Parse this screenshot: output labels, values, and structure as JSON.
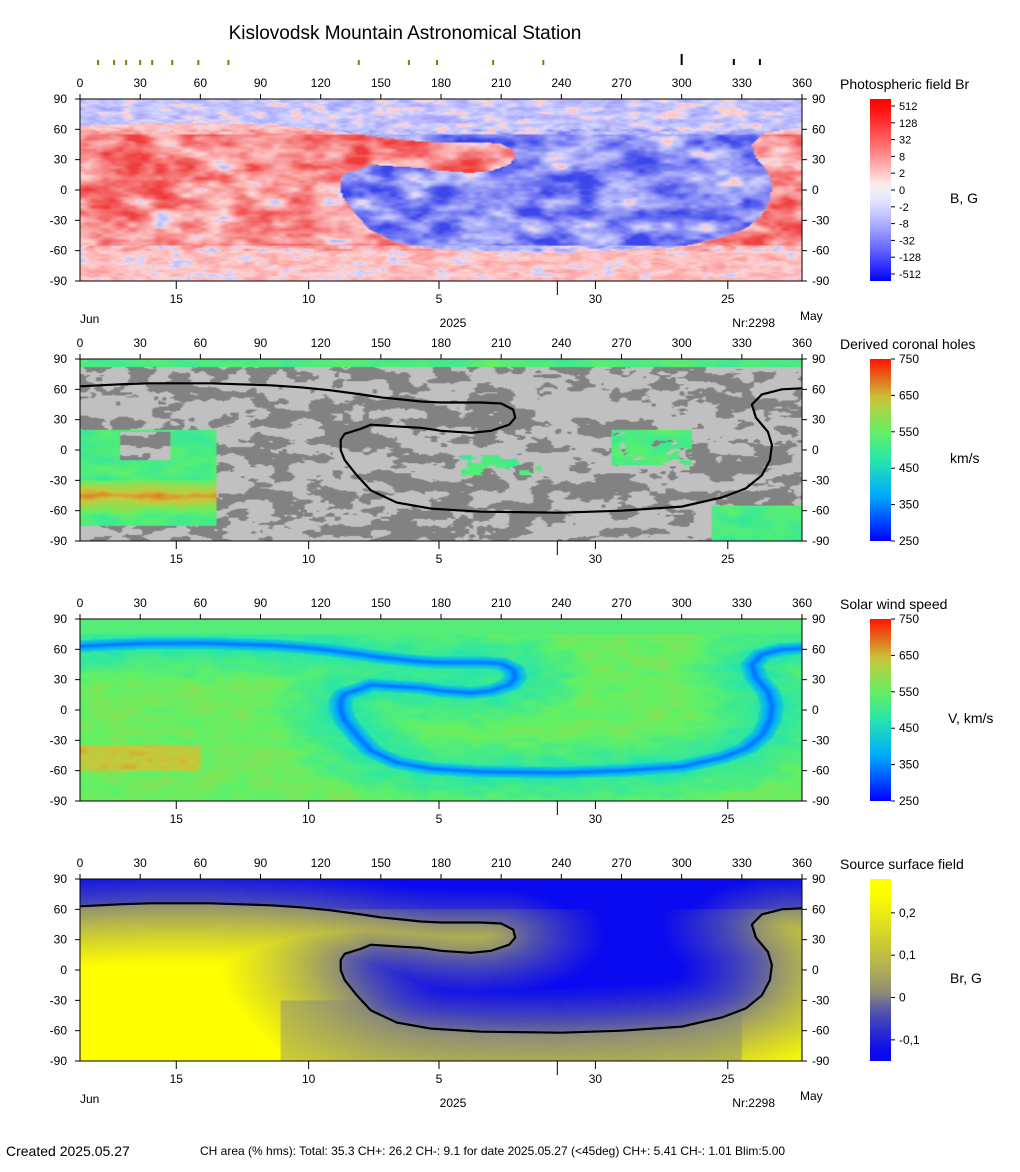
{
  "title": "Kislovodsk Mountain Astronomical Station",
  "top_markers": {
    "olive": [
      9,
      17,
      23,
      30,
      36,
      46,
      59,
      74,
      139,
      164,
      178,
      206,
      231
    ],
    "black_tall": [
      300
    ],
    "black_short": [
      326,
      339
    ]
  },
  "lon_ticks": [
    0,
    30,
    60,
    90,
    120,
    150,
    180,
    210,
    240,
    270,
    300,
    330,
    360
  ],
  "lat_ticks": [
    90,
    60,
    30,
    0,
    -30,
    -60,
    -90
  ],
  "date_ticks": [
    {
      "label": "15",
      "lon": 48
    },
    {
      "label": "10",
      "lon": 114
    },
    {
      "label": "5",
      "lon": 179
    },
    {
      "label": "",
      "lon": 238
    },
    {
      "label": "30",
      "lon": 257
    },
    {
      "label": "25",
      "lon": 323
    }
  ],
  "footer_labels": {
    "left_month": "Jun",
    "year": "2025",
    "carrington": "Nr:2298",
    "right_month": "May"
  },
  "neutral_line": [
    [
      0,
      63
    ],
    [
      10,
      64
    ],
    [
      20,
      65
    ],
    [
      35,
      66
    ],
    [
      50,
      66
    ],
    [
      65,
      66
    ],
    [
      80,
      65
    ],
    [
      95,
      64
    ],
    [
      110,
      62
    ],
    [
      125,
      59
    ],
    [
      140,
      55
    ],
    [
      150,
      52
    ],
    [
      160,
      50
    ],
    [
      170,
      48
    ],
    [
      180,
      47
    ],
    [
      190,
      47
    ],
    [
      200,
      47
    ],
    [
      210,
      46
    ],
    [
      216,
      40
    ],
    [
      217,
      32
    ],
    [
      214,
      25
    ],
    [
      205,
      19
    ],
    [
      195,
      17
    ],
    [
      180,
      19
    ],
    [
      170,
      22
    ],
    [
      160,
      23
    ],
    [
      145,
      25
    ],
    [
      140,
      21
    ],
    [
      132,
      16
    ],
    [
      130,
      10
    ],
    [
      130,
      0
    ],
    [
      132,
      -10
    ],
    [
      138,
      -25
    ],
    [
      145,
      -40
    ],
    [
      158,
      -52
    ],
    [
      175,
      -58
    ],
    [
      200,
      -61
    ],
    [
      240,
      -62
    ],
    [
      270,
      -60
    ],
    [
      300,
      -56
    ],
    [
      320,
      -47
    ],
    [
      332,
      -38
    ],
    [
      340,
      -25
    ],
    [
      344,
      -10
    ],
    [
      345,
      5
    ],
    [
      343,
      18
    ],
    [
      337,
      32
    ],
    [
      335,
      45
    ],
    [
      340,
      55
    ],
    [
      350,
      60
    ],
    [
      360,
      61
    ]
  ],
  "panels": [
    {
      "id": "br",
      "name": "Photospheric field Br",
      "unit": "B, G",
      "colorbar_labels": [
        "512",
        "128",
        "32",
        "8",
        "2",
        "0",
        "-2",
        "-8",
        "-32",
        "-128",
        "-512"
      ],
      "top_axis": true,
      "bottom_labels": true
    },
    {
      "id": "ch",
      "name": "Derived coronal holes",
      "unit": "km/s",
      "colorbar_labels": [
        "750",
        "650",
        "550",
        "450",
        "350",
        "250"
      ],
      "colorbar_range": [
        250,
        750
      ],
      "top_axis": true,
      "bottom_labels": false
    },
    {
      "id": "sw",
      "name": "Solar wind speed",
      "unit": "V, km/s",
      "colorbar_labels": [
        "750",
        "650",
        "550",
        "450",
        "350",
        "250"
      ],
      "colorbar_range": [
        250,
        750
      ],
      "top_axis": true,
      "bottom_labels": false
    },
    {
      "id": "ss",
      "name": "Source surface field",
      "unit": "Br, G",
      "colorbar_labels": [
        "0,2",
        "0,1",
        "0",
        "-0,1"
      ],
      "colorbar_range": [
        -0.15,
        0.28
      ],
      "top_axis": true,
      "bottom_labels": true
    }
  ],
  "chart_data": [
    {
      "type": "heatmap",
      "title": "Photospheric field Br",
      "unit": "B, G",
      "xlim": [
        0,
        360
      ],
      "ylim": [
        -90,
        90
      ],
      "colorbar_ticks": [
        512,
        128,
        32,
        8,
        2,
        0,
        -2,
        -8,
        -32,
        -128,
        -512
      ]
    },
    {
      "type": "heatmap",
      "title": "Derived coronal holes",
      "unit": "km/s",
      "xlim": [
        0,
        360
      ],
      "ylim": [
        -90,
        90
      ],
      "colorbar_ticks": [
        750,
        650,
        550,
        450,
        350,
        250
      ]
    },
    {
      "type": "heatmap",
      "title": "Solar wind speed",
      "unit": "V, km/s",
      "xlim": [
        0,
        360
      ],
      "ylim": [
        -90,
        90
      ],
      "colorbar_ticks": [
        750,
        650,
        550,
        450,
        350,
        250
      ]
    },
    {
      "type": "heatmap",
      "title": "Source surface field",
      "unit": "Br, G",
      "xlim": [
        0,
        360
      ],
      "ylim": [
        -90,
        90
      ],
      "colorbar_ticks": [
        0.2,
        0.1,
        0,
        -0.1
      ]
    }
  ],
  "footer": {
    "created": "Created  2025.05.27",
    "stats": "CH area (% hms): Total: 35.3 CH+: 26.2   CH-: 9.1 for date 2025.05.27 (<45deg) CH+: 5.41    CH-: 1.01 Blim:5.00"
  }
}
